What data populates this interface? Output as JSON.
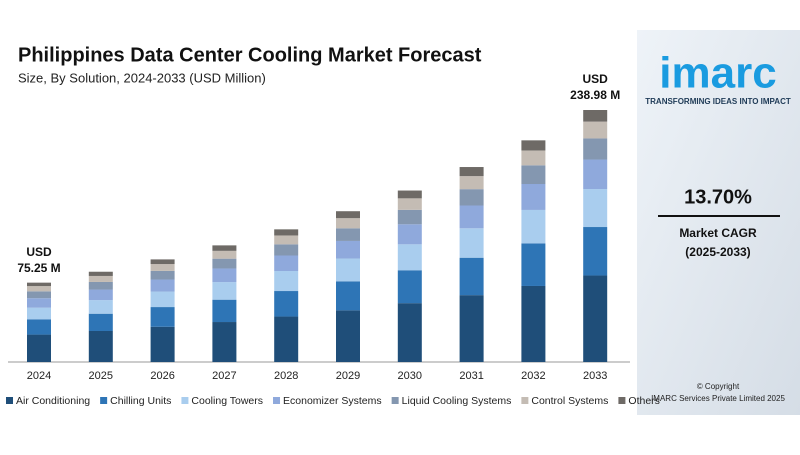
{
  "chart_data": {
    "type": "stacked-bar",
    "title": "Philippines Data Center Cooling Market Forecast",
    "subtitle": "Size, By Solution, 2024-2033 (USD Million)",
    "categories": [
      "2024",
      "2025",
      "2026",
      "2027",
      "2028",
      "2029",
      "2030",
      "2031",
      "2032",
      "2033"
    ],
    "series": [
      {
        "name": "Air Conditioning",
        "color": "#1f4e79",
        "values": [
          26,
          29.4,
          33.4,
          37.9,
          43.1,
          49.0,
          55.8,
          63.4,
          72.1,
          82
        ]
      },
      {
        "name": "Chilling Units",
        "color": "#2e75b6",
        "values": [
          14.5,
          16.4,
          18.7,
          21.2,
          24.2,
          27.5,
          31.2,
          35.5,
          40.4,
          46
        ]
      },
      {
        "name": "Cooling Towers",
        "color": "#a9cdee",
        "values": [
          11,
          12.9,
          14.7,
          16.7,
          19.0,
          21.6,
          24.6,
          27.9,
          31.7,
          36
        ]
      },
      {
        "name": "Economizer Systems",
        "color": "#8fa9dc",
        "values": [
          9,
          10.0,
          11.4,
          12.9,
          14.7,
          16.7,
          19.0,
          21.6,
          24.6,
          28
        ]
      },
      {
        "name": "Liquid Cooling Systems",
        "color": "#8497b0",
        "values": [
          6.5,
          7.2,
          8.2,
          9.3,
          10.6,
          12.0,
          13.7,
          15.5,
          17.7,
          20
        ]
      },
      {
        "name": "Control Systems",
        "color": "#c4bcb4",
        "values": [
          5,
          5.7,
          6.5,
          7.4,
          8.4,
          9.6,
          10.9,
          12.4,
          14.1,
          16
        ]
      },
      {
        "name": "Others",
        "color": "#6e6a66",
        "values": [
          3.25,
          4.0,
          4.4,
          5.2,
          5.8,
          6.6,
          7.4,
          8.6,
          9.6,
          10.98
        ]
      }
    ],
    "start_label": [
      "USD",
      "75.25 M"
    ],
    "end_label": [
      "USD",
      "238.98 M"
    ]
  },
  "brand": {
    "logo": "imarc",
    "tagline": "TRANSFORMING IDEAS INTO IMPACT"
  },
  "cagr": {
    "value": "13.70%",
    "label": "Market CAGR",
    "period": "(2025-2033)"
  },
  "copyright": [
    "© Copyright",
    "IMARC Services Private Limited 2025"
  ]
}
